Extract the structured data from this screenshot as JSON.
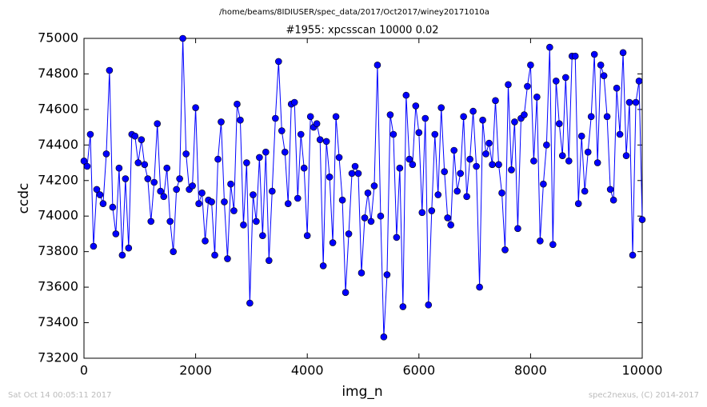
{
  "chart_data": {
    "type": "line",
    "title": "/home/beams/8IDIUSER/spec_data/2017/Oct2017/winey20171010a",
    "subtitle": "#1955: xpcsscan 10000 0.02",
    "xlabel": "img_n",
    "ylabel": "ccdc",
    "color": "#0000ff",
    "xlim": [
      0,
      10000
    ],
    "ylim": [
      73200,
      75000
    ],
    "xticks": [
      0,
      2000,
      4000,
      6000,
      8000,
      10000
    ],
    "yticks": [
      73200,
      73400,
      73600,
      73800,
      74000,
      74200,
      74400,
      74600,
      74800,
      75000
    ],
    "x": [
      0,
      57,
      114,
      171,
      229,
      286,
      343,
      400,
      457,
      514,
      571,
      629,
      686,
      743,
      800,
      857,
      914,
      971,
      1029,
      1086,
      1143,
      1200,
      1257,
      1314,
      1371,
      1429,
      1486,
      1543,
      1600,
      1657,
      1714,
      1771,
      1829,
      1886,
      1943,
      2000,
      2057,
      2114,
      2171,
      2229,
      2286,
      2343,
      2400,
      2457,
      2514,
      2571,
      2629,
      2686,
      2743,
      2800,
      2857,
      2914,
      2971,
      3029,
      3086,
      3143,
      3200,
      3257,
      3314,
      3371,
      3429,
      3486,
      3543,
      3600,
      3657,
      3714,
      3771,
      3829,
      3886,
      3943,
      4000,
      4057,
      4114,
      4171,
      4229,
      4286,
      4343,
      4400,
      4457,
      4514,
      4571,
      4629,
      4686,
      4743,
      4800,
      4857,
      4914,
      4971,
      5029,
      5086,
      5143,
      5200,
      5257,
      5314,
      5371,
      5429,
      5486,
      5543,
      5600,
      5657,
      5714,
      5771,
      5829,
      5886,
      5943,
      6000,
      6057,
      6114,
      6171,
      6229,
      6286,
      6343,
      6400,
      6457,
      6514,
      6571,
      6629,
      6686,
      6743,
      6800,
      6857,
      6914,
      6971,
      7029,
      7086,
      7143,
      7200,
      7257,
      7314,
      7371,
      7429,
      7486,
      7543,
      7600,
      7657,
      7714,
      7771,
      7829,
      7886,
      7943,
      8000,
      8057,
      8114,
      8171,
      8229,
      8286,
      8343,
      8400,
      8457,
      8514,
      8571,
      8629,
      8686,
      8743,
      8800,
      8857,
      8914,
      8971,
      9029,
      9086,
      9143,
      9200,
      9257,
      9314,
      9371,
      9429,
      9486,
      9543,
      9600,
      9657,
      9714,
      9771,
      9829,
      9886,
      9943,
      10000
    ],
    "values": [
      74310,
      74280,
      74460,
      73830,
      74150,
      74120,
      74070,
      74350,
      74820,
      74050,
      73900,
      74270,
      73780,
      74210,
      73820,
      74460,
      74450,
      74300,
      74430,
      74290,
      74210,
      73970,
      74190,
      74520,
      74140,
      74110,
      74270,
      73970,
      73800,
      74150,
      74210,
      75000,
      74350,
      74150,
      74170,
      74610,
      74070,
      74130,
      73860,
      74090,
      74080,
      73780,
      74320,
      74530,
      74080,
      73760,
      74180,
      74030,
      74630,
      74540,
      73950,
      74300,
      73510,
      74120,
      73970,
      74330,
      73890,
      74360,
      73750,
      74140,
      74550,
      74870,
      74480,
      74360,
      74070,
      74630,
      74640,
      74100,
      74460,
      74270,
      73890,
      74560,
      74500,
      74520,
      74430,
      73720,
      74420,
      74220,
      73850,
      74560,
      74330,
      74090,
      73570,
      73900,
      74240,
      74280,
      74240,
      73680,
      73990,
      74130,
      73970,
      74170,
      74850,
      74000,
      73320,
      73670,
      74570,
      74460,
      73880,
      74270,
      73490,
      74680,
      74320,
      74290,
      74620,
      74470,
      74020,
      74550,
      73500,
      74030,
      74460,
      74120,
      74610,
      74250,
      73990,
      73950,
      74370,
      74140,
      74240,
      74560,
      74110,
      74320,
      74590,
      74280,
      73600,
      74540,
      74350,
      74410,
      74290,
      74650,
      74290,
      74130,
      73810,
      74740,
      74260,
      74530,
      73930,
      74550,
      74570,
      74730,
      74850,
      74310,
      74670,
      73860,
      74180,
      74400,
      74950,
      73840,
      74760,
      74520,
      74340,
      74780,
      74310,
      74900,
      74900,
      74070,
      74450,
      74140,
      74360,
      74560,
      74910,
      74300,
      74850,
      74790,
      74560,
      74150,
      74090,
      74720,
      74460,
      74920,
      74340,
      74640,
      73780,
      74640,
      74760,
      73980
    ]
  },
  "footer": {
    "left": "Sat Oct 14 00:05:11 2017",
    "right": "spec2nexus, (C) 2014-2017"
  }
}
